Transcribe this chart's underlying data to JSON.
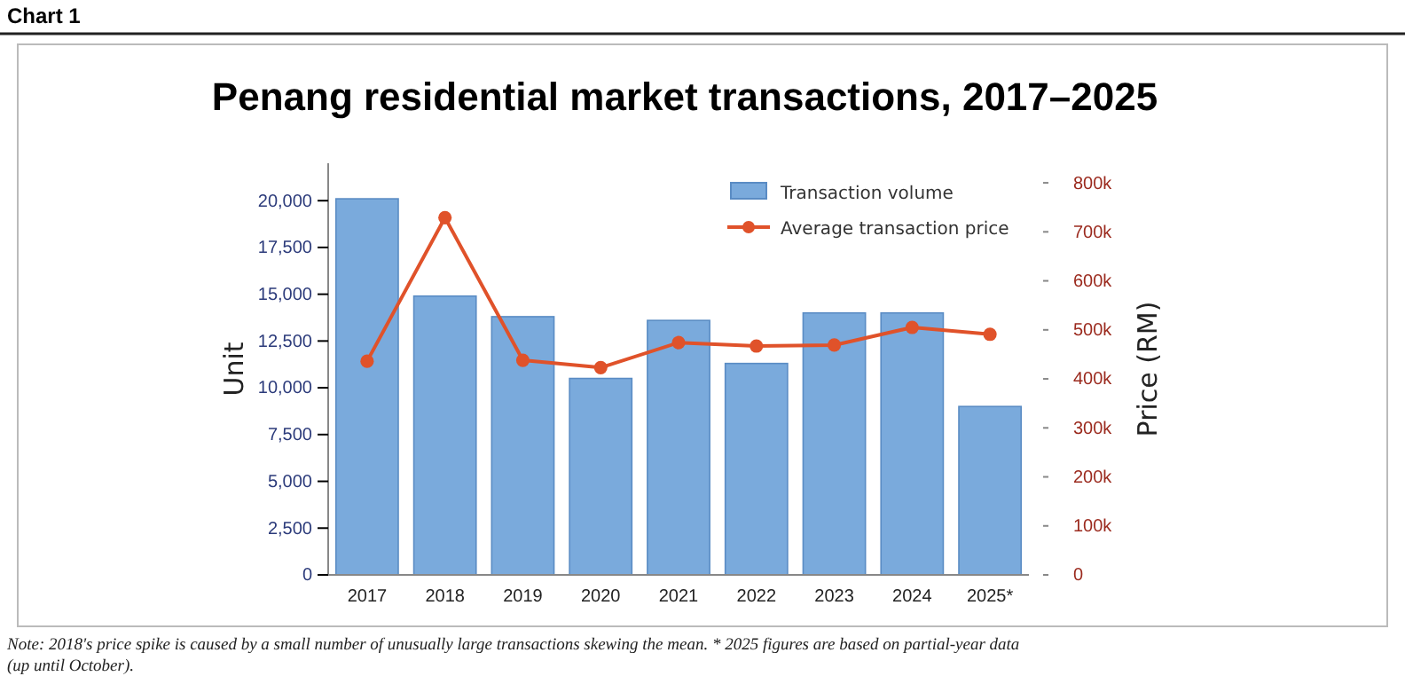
{
  "chart_data": {
    "type": "bar",
    "title": "Penang residential market transactions, 2017–2025",
    "categories": [
      "2017",
      "2018",
      "2019",
      "2020",
      "2021",
      "2022",
      "2023",
      "2024",
      "2025*"
    ],
    "series": [
      {
        "name": "Transaction volume",
        "color": "#7aaadc",
        "values": [
          20100,
          14900,
          13800,
          10500,
          13600,
          11300,
          14000,
          14000,
          9000
        ]
      },
      {
        "name": "Average transaction price",
        "type": "line",
        "axis": "y2",
        "color": "#e0522a",
        "marker": "circle",
        "values": [
          436000,
          729000,
          438000,
          423000,
          474000,
          467000,
          469000,
          505000,
          491000
        ]
      }
    ],
    "ylabel": "Unit",
    "y2label": "Price (RM)",
    "ylim": [
      0,
      22000
    ],
    "yticks": [
      0,
      {
        "value": 2500,
        "label": "2,500"
      },
      {
        "value": 5000,
        "label": "5,000"
      },
      {
        "value": 7500,
        "label": "7,500"
      },
      {
        "value": 10000,
        "label": "10,000"
      },
      {
        "value": 12500,
        "label": "12,500"
      },
      {
        "value": 15000,
        "label": "15,000"
      },
      {
        "value": 17500,
        "label": "17,500"
      },
      {
        "value": 20000,
        "label": "20,000"
      }
    ],
    "y2lim": [
      0,
      840000
    ],
    "y2ticks": [
      0,
      {
        "value": 100000,
        "label": "100k"
      },
      {
        "value": 200000,
        "label": "200k"
      },
      {
        "value": 300000,
        "label": "300k"
      },
      {
        "value": 400000,
        "label": "400k"
      },
      {
        "value": 500000,
        "label": "500k"
      },
      {
        "value": 600000,
        "label": "600k"
      },
      {
        "value": 700000,
        "label": "700k"
      },
      {
        "value": 800000,
        "label": "800k"
      }
    ],
    "legend": "top right",
    "grid": false,
    "annotations": [
      "Chart 1",
      "Note: 2018's price spike is caused by a small number of unusually large transactions skewing the mean. * 2025 figures are based on partial-year data (up until October)."
    ]
  }
}
